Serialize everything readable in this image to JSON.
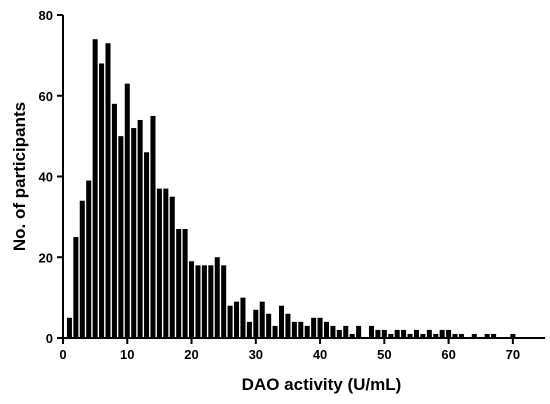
{
  "chart_data": {
    "type": "bar",
    "title": "",
    "xlabel": "DAO activity (U/mL)",
    "ylabel": "No. of participants",
    "xlim": [
      0,
      75
    ],
    "ylim": [
      0,
      80
    ],
    "xticks": [
      0,
      10,
      20,
      30,
      40,
      50,
      60,
      70
    ],
    "yticks": [
      0,
      20,
      40,
      60,
      80
    ],
    "grid": false,
    "bin_width": 1,
    "bins": [
      {
        "x": 1,
        "y": 5
      },
      {
        "x": 2,
        "y": 25
      },
      {
        "x": 3,
        "y": 34
      },
      {
        "x": 4,
        "y": 39
      },
      {
        "x": 5,
        "y": 74
      },
      {
        "x": 6,
        "y": 68
      },
      {
        "x": 7,
        "y": 73
      },
      {
        "x": 8,
        "y": 58
      },
      {
        "x": 9,
        "y": 50
      },
      {
        "x": 10,
        "y": 63
      },
      {
        "x": 11,
        "y": 52
      },
      {
        "x": 12,
        "y": 54
      },
      {
        "x": 13,
        "y": 46
      },
      {
        "x": 14,
        "y": 55
      },
      {
        "x": 15,
        "y": 37
      },
      {
        "x": 16,
        "y": 37
      },
      {
        "x": 17,
        "y": 35
      },
      {
        "x": 18,
        "y": 27
      },
      {
        "x": 19,
        "y": 27
      },
      {
        "x": 20,
        "y": 19
      },
      {
        "x": 21,
        "y": 18
      },
      {
        "x": 22,
        "y": 18
      },
      {
        "x": 23,
        "y": 18
      },
      {
        "x": 24,
        "y": 20
      },
      {
        "x": 25,
        "y": 18
      },
      {
        "x": 26,
        "y": 8
      },
      {
        "x": 27,
        "y": 9
      },
      {
        "x": 28,
        "y": 10
      },
      {
        "x": 29,
        "y": 4
      },
      {
        "x": 30,
        "y": 7
      },
      {
        "x": 31,
        "y": 9
      },
      {
        "x": 32,
        "y": 6
      },
      {
        "x": 33,
        "y": 3
      },
      {
        "x": 34,
        "y": 8
      },
      {
        "x": 35,
        "y": 6
      },
      {
        "x": 36,
        "y": 4
      },
      {
        "x": 37,
        "y": 4
      },
      {
        "x": 38,
        "y": 3
      },
      {
        "x": 39,
        "y": 5
      },
      {
        "x": 40,
        "y": 5
      },
      {
        "x": 41,
        "y": 4
      },
      {
        "x": 42,
        "y": 3
      },
      {
        "x": 43,
        "y": 2
      },
      {
        "x": 44,
        "y": 3
      },
      {
        "x": 45,
        "y": 1
      },
      {
        "x": 46,
        "y": 3
      },
      {
        "x": 48,
        "y": 3
      },
      {
        "x": 49,
        "y": 2
      },
      {
        "x": 50,
        "y": 2
      },
      {
        "x": 51,
        "y": 1
      },
      {
        "x": 52,
        "y": 2
      },
      {
        "x": 53,
        "y": 2
      },
      {
        "x": 54,
        "y": 1
      },
      {
        "x": 55,
        "y": 2
      },
      {
        "x": 56,
        "y": 1
      },
      {
        "x": 57,
        "y": 2
      },
      {
        "x": 58,
        "y": 1
      },
      {
        "x": 59,
        "y": 2
      },
      {
        "x": 60,
        "y": 2
      },
      {
        "x": 61,
        "y": 1
      },
      {
        "x": 62,
        "y": 1
      },
      {
        "x": 64,
        "y": 1
      },
      {
        "x": 66,
        "y": 1
      },
      {
        "x": 67,
        "y": 1
      },
      {
        "x": 70,
        "y": 1
      }
    ],
    "bar_color": "#000000"
  }
}
